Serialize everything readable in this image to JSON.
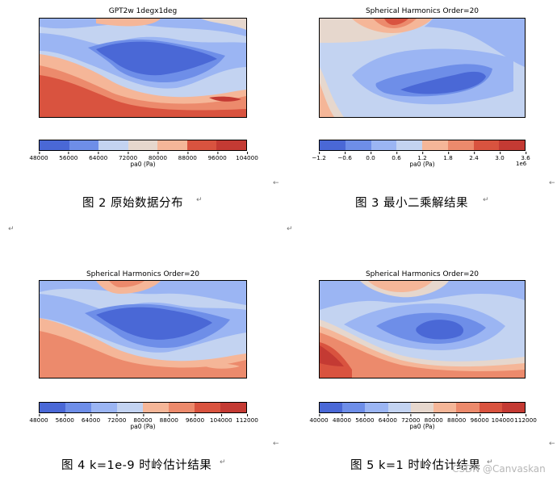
{
  "figures": [
    {
      "plot_title": "GPT2w 1degx1deg",
      "colorbar_ticks": [
        "48000",
        "56000",
        "64000",
        "72000",
        "80000",
        "88000",
        "96000",
        "104000"
      ],
      "colorbar_label": "pa0 (Pa)",
      "colorbar_offset": "",
      "n_colors": 7,
      "caption": "图 2  原始数据分布"
    },
    {
      "plot_title": "Spherical Harmonics Order=20",
      "colorbar_ticks": [
        "−1.2",
        "−0.6",
        "0.0",
        "0.6",
        "1.2",
        "1.8",
        "2.4",
        "3.0",
        "3.6"
      ],
      "colorbar_label": "pa0 (Pa)",
      "colorbar_offset": "1e6",
      "n_colors": 8,
      "caption": "图 3  最小二乘解结果"
    },
    {
      "plot_title": "Spherical Harmonics Order=20",
      "colorbar_ticks": [
        "48000",
        "56000",
        "64000",
        "72000",
        "80000",
        "88000",
        "96000",
        "104000",
        "112000"
      ],
      "colorbar_label": "pa0 (Pa)",
      "colorbar_offset": "",
      "n_colors": 8,
      "caption": "图 4 k=1e-9 时岭估计结果"
    },
    {
      "plot_title": "Spherical Harmonics Order=20",
      "colorbar_ticks": [
        "40000",
        "48000",
        "56000",
        "64000",
        "72000",
        "80000",
        "88000",
        "96000",
        "104000",
        "112000"
      ],
      "colorbar_label": "pa0 (Pa)",
      "colorbar_offset": "",
      "n_colors": 9,
      "caption": "图 5 k=1 时岭估计结果"
    }
  ],
  "palette": [
    "#4a68d6",
    "#6e8ee8",
    "#9bb5f3",
    "#c3d3f1",
    "#e6d7cd",
    "#f5b698",
    "#ec8a6c",
    "#d9533f",
    "#c43a33"
  ],
  "watermark": "CSDN @Canvaskan",
  "paragraph_mark": "↵",
  "arrow_mark": "←"
}
